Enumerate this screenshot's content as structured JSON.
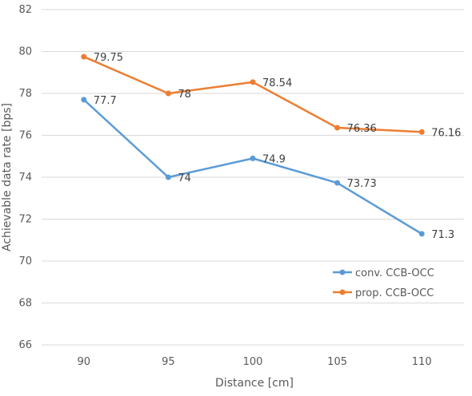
{
  "chart_data": {
    "type": "line",
    "title": "",
    "xlabel": "Distance [cm]",
    "ylabel": "Achievable data rate [bps]",
    "categories": [
      "90",
      "95",
      "100",
      "105",
      "110"
    ],
    "ylim": [
      66,
      82
    ],
    "yticks": [
      66,
      68,
      70,
      72,
      74,
      76,
      78,
      80,
      82
    ],
    "grid": true,
    "legend_position": "bottom-right",
    "series": [
      {
        "name": "conv. CCB-OCC",
        "color": "#5b9bd5",
        "values": [
          77.7,
          74,
          74.9,
          73.73,
          71.3
        ]
      },
      {
        "name": "prop. CCB-OCC",
        "color": "#ed7d31",
        "values": [
          79.75,
          78,
          78.54,
          76.36,
          76.16
        ]
      }
    ]
  }
}
